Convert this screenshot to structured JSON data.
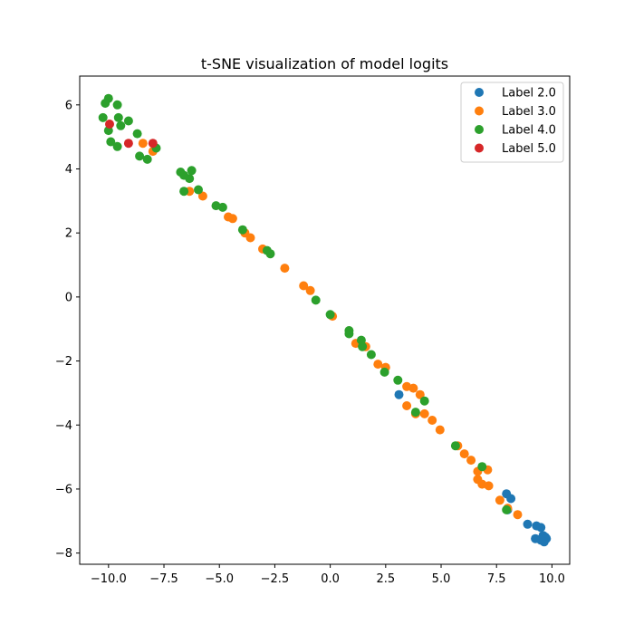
{
  "chart_data": {
    "type": "scatter",
    "title": "t-SNE visualization of model logits",
    "xlabel": "",
    "ylabel": "",
    "xlim": [
      -11.3,
      10.8
    ],
    "ylim": [
      -8.35,
      6.9
    ],
    "xticks": [
      -10.0,
      -7.5,
      -5.0,
      -2.5,
      0.0,
      2.5,
      5.0,
      7.5,
      10.0
    ],
    "xtick_labels": [
      "−10.0",
      "−7.5",
      "−5.0",
      "−2.5",
      "0.0",
      "2.5",
      "5.0",
      "7.5",
      "10.0"
    ],
    "yticks": [
      6,
      4,
      2,
      0,
      -2,
      -4,
      -6,
      -8
    ],
    "ytick_labels": [
      "6",
      "4",
      "2",
      "0",
      "−2",
      "−4",
      "−6",
      "−8"
    ],
    "grid": false,
    "legend_position": "top-right",
    "series": [
      {
        "name": "Label 2.0",
        "color": "#1f77b4",
        "x": [
          3.1,
          7.95,
          8.15,
          8.0,
          8.9,
          9.3,
          9.5,
          9.6,
          9.7,
          9.75,
          9.65,
          9.5,
          9.25
        ],
        "y": [
          -3.05,
          -6.15,
          -6.3,
          -6.65,
          -7.1,
          -7.15,
          -7.2,
          -7.45,
          -7.5,
          -7.55,
          -7.65,
          -7.6,
          -7.55
        ]
      },
      {
        "name": "Label 3.0",
        "color": "#ff7f0e",
        "x": [
          -8.45,
          -8.0,
          -6.35,
          -5.75,
          -4.6,
          -4.4,
          -3.85,
          -3.6,
          -3.05,
          -2.05,
          -1.2,
          -0.9,
          0.1,
          1.15,
          1.6,
          2.15,
          2.5,
          3.45,
          3.45,
          3.75,
          4.05,
          3.85,
          4.25,
          4.6,
          4.95,
          5.75,
          6.05,
          6.35,
          6.65,
          6.65,
          6.85,
          7.1,
          7.15,
          7.65,
          8.0,
          8.45
        ],
        "y": [
          4.8,
          4.55,
          3.3,
          3.15,
          2.5,
          2.45,
          2.0,
          1.85,
          1.5,
          0.9,
          0.35,
          0.2,
          -0.6,
          -1.45,
          -1.55,
          -2.1,
          -2.2,
          -2.8,
          -3.4,
          -2.85,
          -3.05,
          -3.65,
          -3.65,
          -3.85,
          -4.15,
          -4.65,
          -4.9,
          -5.1,
          -5.45,
          -5.7,
          -5.85,
          -5.4,
          -5.9,
          -6.35,
          -6.6,
          -6.8
        ]
      },
      {
        "name": "Label 4.0",
        "color": "#2ca02c",
        "x": [
          -10.0,
          -10.15,
          -10.25,
          -10.0,
          -9.6,
          -9.55,
          -9.45,
          -9.1,
          -8.7,
          -8.6,
          -8.25,
          -7.85,
          -9.9,
          -9.6,
          -6.75,
          -6.6,
          -6.35,
          -6.25,
          -6.6,
          -5.95,
          -5.15,
          -4.85,
          -3.95,
          -2.85,
          -2.7,
          -0.65,
          0.0,
          0.85,
          0.85,
          1.4,
          1.45,
          1.85,
          2.45,
          3.05,
          3.85,
          4.25,
          5.65,
          6.85,
          7.95
        ],
        "y": [
          6.2,
          6.05,
          5.6,
          5.2,
          6.0,
          5.6,
          5.35,
          5.5,
          5.1,
          4.4,
          4.3,
          4.65,
          4.85,
          4.7,
          3.9,
          3.8,
          3.7,
          3.95,
          3.3,
          3.35,
          2.85,
          2.8,
          2.1,
          1.45,
          1.35,
          -0.1,
          -0.55,
          -1.05,
          -1.15,
          -1.35,
          -1.55,
          -1.8,
          -2.35,
          -2.6,
          -3.6,
          -3.25,
          -4.65,
          -5.3,
          -6.65
        ]
      },
      {
        "name": "Label 5.0",
        "color": "#d62728",
        "x": [
          -9.95,
          -9.1,
          -8.0
        ],
        "y": [
          5.4,
          4.8,
          4.8
        ]
      }
    ]
  }
}
